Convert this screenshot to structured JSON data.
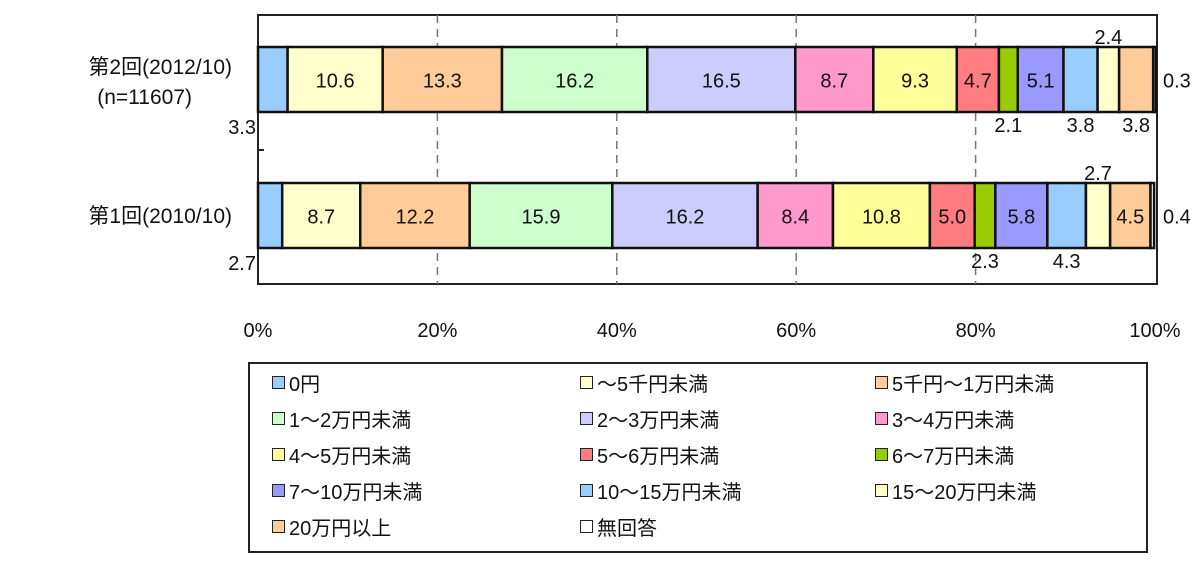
{
  "chart_data": {
    "type": "bar",
    "orientation": "horizontal",
    "stacked": "100%",
    "categories": [
      {
        "label": "第2回(2012/10)",
        "sublabel": "(n=11607)"
      },
      {
        "label": "第1回(2010/10)",
        "sublabel": ""
      }
    ],
    "series": [
      {
        "name": "0円",
        "color": "#99ccff",
        "values": [
          3.3,
          2.7
        ]
      },
      {
        "name": "～5千円未満",
        "color": "#ffffcc",
        "values": [
          10.6,
          8.7
        ]
      },
      {
        "name": "5千円～1万円未満",
        "color": "#ffcc99",
        "values": [
          13.3,
          12.2
        ]
      },
      {
        "name": "1～2万円未満",
        "color": "#ccffcc",
        "values": [
          16.2,
          15.9
        ]
      },
      {
        "name": "2～3万円未満",
        "color": "#ccccff",
        "values": [
          16.5,
          16.2
        ]
      },
      {
        "name": "3～4万円未満",
        "color": "#ff99cc",
        "values": [
          8.7,
          8.4
        ]
      },
      {
        "name": "4～5万円未満",
        "color": "#ffff99",
        "values": [
          9.3,
          10.8
        ]
      },
      {
        "name": "5～6万円未満",
        "color": "#ff7c80",
        "values": [
          4.7,
          5.0
        ]
      },
      {
        "name": "6～7万円未満",
        "color": "#99cc00",
        "values": [
          2.1,
          2.3
        ]
      },
      {
        "name": "7～10万円未満",
        "color": "#9999ff",
        "values": [
          5.1,
          5.8
        ]
      },
      {
        "name": "10～15万円未満",
        "color": "#99ccff",
        "values": [
          3.8,
          4.3
        ]
      },
      {
        "name": "15～20万円未満",
        "color": "#ffffcc",
        "values": [
          2.4,
          2.7
        ]
      },
      {
        "name": "20万円以上",
        "color": "#ffcc99",
        "values": [
          3.8,
          4.5
        ]
      },
      {
        "name": "無回答",
        "color": "#ffffff",
        "values": [
          0.3,
          0.4
        ]
      }
    ],
    "xticks": [
      "0%",
      "20%",
      "40%",
      "60%",
      "80%",
      "100%"
    ],
    "xlim": [
      0,
      100
    ],
    "grid": "vertical dashed",
    "legend_placement": "bottom"
  }
}
